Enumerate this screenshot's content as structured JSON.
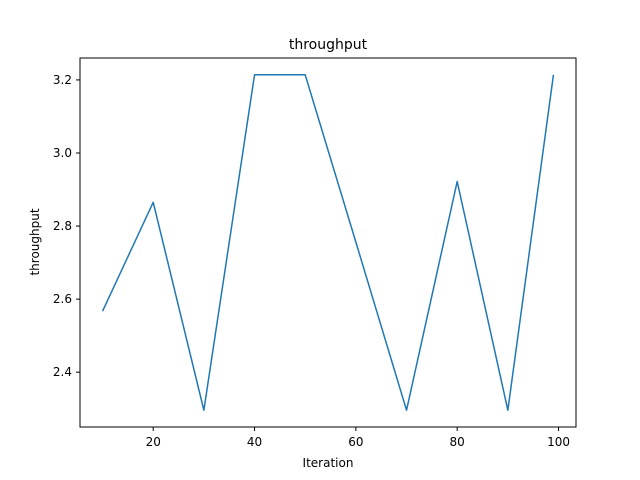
{
  "chart_data": {
    "type": "line",
    "title": "throughput",
    "xlabel": "Iteration",
    "ylabel": "throughput",
    "x": [
      10,
      20,
      30,
      40,
      50,
      60,
      70,
      80,
      90,
      99
    ],
    "series": [
      {
        "values": [
          2.567,
          2.865,
          2.296,
          3.214,
          3.214,
          2.756,
          2.296,
          2.922,
          2.296,
          3.214
        ],
        "color": "#1f77b4"
      }
    ],
    "xlim": [
      5.55,
      103.45
    ],
    "ylim": [
      2.25,
      3.26
    ],
    "xticks": [
      20,
      40,
      60,
      80,
      100
    ],
    "xtick_labels": [
      "20",
      "40",
      "60",
      "80",
      "100"
    ],
    "yticks": [
      2.4,
      2.6,
      2.8,
      3.0,
      3.2
    ],
    "ytick_labels": [
      "2.4",
      "2.6",
      "2.8",
      "3.0",
      "3.2"
    ],
    "grid": false,
    "legend": "none"
  }
}
